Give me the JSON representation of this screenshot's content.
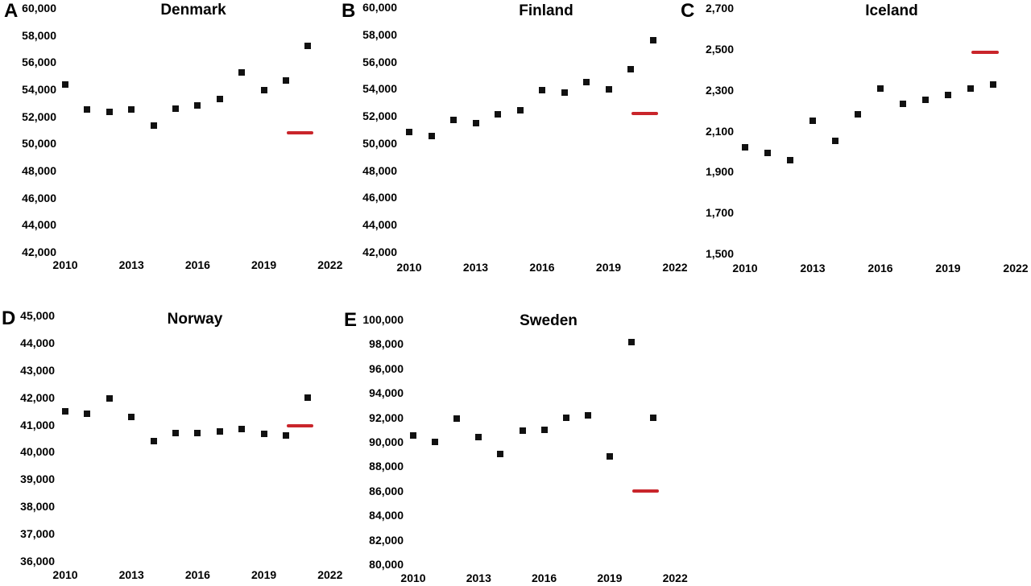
{
  "figure": {
    "background": "#ffffff",
    "marker_color": "#111111",
    "reference_color": "#c9252b"
  },
  "chart_data": [
    {
      "type": "scatter",
      "panel_label": "A",
      "title": "Denmark",
      "x": [
        2010,
        2011,
        2012,
        2013,
        2014,
        2015,
        2016,
        2017,
        2018,
        2019,
        2020,
        2021
      ],
      "values": [
        54350,
        52500,
        52350,
        52500,
        51350,
        52550,
        52800,
        53300,
        55250,
        53950,
        54650,
        57200
      ],
      "reference_line": {
        "value": 50800,
        "x_start": 2020.05,
        "x_end": 2021.25
      },
      "xlim": [
        2010,
        2022
      ],
      "ylim": [
        42000,
        60000
      ],
      "y_tick_step": 2000,
      "x_ticks": [
        2010,
        2013,
        2016,
        2019,
        2022
      ],
      "grid": false,
      "legend": "none"
    },
    {
      "type": "scatter",
      "panel_label": "B",
      "title": "Finland",
      "x": [
        2010,
        2011,
        2012,
        2013,
        2014,
        2015,
        2016,
        2017,
        2018,
        2019,
        2020,
        2021
      ],
      "values": [
        50850,
        50550,
        51700,
        51450,
        52100,
        52450,
        53900,
        53700,
        54500,
        53950,
        55450,
        57600
      ],
      "reference_line": {
        "value": 52200,
        "x_start": 2020.05,
        "x_end": 2021.25
      },
      "xlim": [
        2010,
        2022
      ],
      "ylim": [
        42000,
        60000
      ],
      "y_tick_step": 2000,
      "x_ticks": [
        2010,
        2013,
        2016,
        2019,
        2022
      ],
      "grid": false,
      "legend": "none"
    },
    {
      "type": "scatter",
      "panel_label": "C",
      "title": "Iceland",
      "x": [
        2010,
        2011,
        2012,
        2013,
        2014,
        2015,
        2016,
        2017,
        2018,
        2019,
        2020,
        2021
      ],
      "values": [
        2020,
        1990,
        1955,
        2150,
        2050,
        2180,
        2305,
        2230,
        2250,
        2275,
        2305,
        2325
      ],
      "reference_line": {
        "value": 2485,
        "x_start": 2020.05,
        "x_end": 2021.25
      },
      "xlim": [
        2010,
        2022
      ],
      "ylim": [
        1500,
        2700
      ],
      "y_tick_step": 200,
      "x_ticks": [
        2010,
        2013,
        2016,
        2019,
        2022
      ],
      "grid": false,
      "legend": "none"
    },
    {
      "type": "scatter",
      "panel_label": "D",
      "title": "Norway",
      "x": [
        2010,
        2011,
        2012,
        2013,
        2014,
        2015,
        2016,
        2017,
        2018,
        2019,
        2020,
        2021
      ],
      "values": [
        41500,
        41400,
        41975,
        41275,
        40400,
        40700,
        40700,
        40750,
        40825,
        40650,
        40600,
        42000
      ],
      "reference_line": {
        "value": 40950,
        "x_start": 2020.05,
        "x_end": 2021.25
      },
      "xlim": [
        2010,
        2022
      ],
      "ylim": [
        36000,
        45000
      ],
      "y_tick_step": 1000,
      "x_ticks": [
        2010,
        2013,
        2016,
        2019,
        2022
      ],
      "grid": false,
      "legend": "none"
    },
    {
      "type": "scatter",
      "panel_label": "E",
      "title": "Sweden",
      "x": [
        2010,
        2011,
        2012,
        2013,
        2014,
        2015,
        2016,
        2017,
        2018,
        2019,
        2020,
        2021
      ],
      "values": [
        90500,
        90000,
        91900,
        90400,
        89000,
        90900,
        91000,
        92000,
        92200,
        88800,
        98150,
        91950
      ],
      "reference_line": {
        "value": 86000,
        "x_start": 2020.05,
        "x_end": 2021.25
      },
      "xlim": [
        2010,
        2022
      ],
      "ylim": [
        80000,
        100000
      ],
      "y_tick_step": 2000,
      "x_ticks": [
        2010,
        2013,
        2016,
        2019,
        2022
      ],
      "grid": false,
      "legend": "none"
    }
  ]
}
